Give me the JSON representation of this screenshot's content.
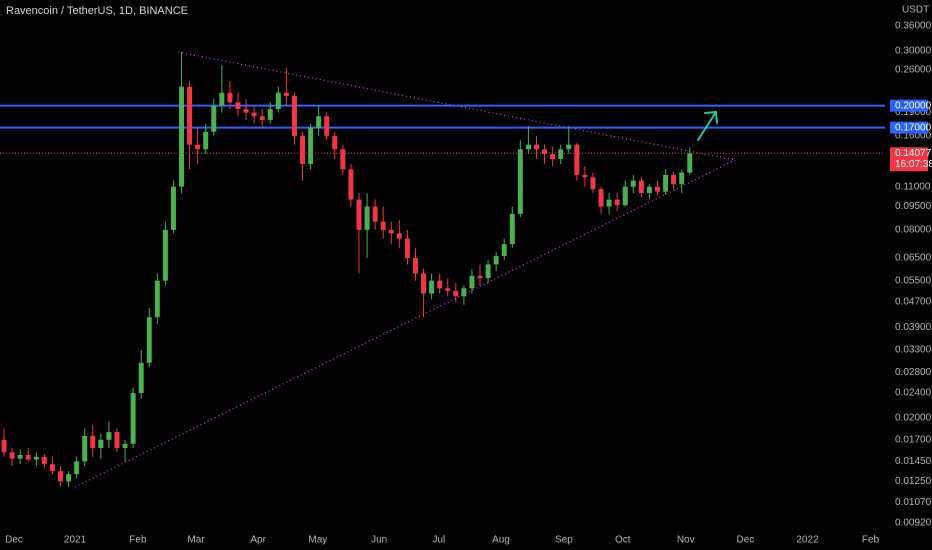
{
  "chart_data": {
    "type": "candlestick",
    "title": "Ravencoin / TetherUS, 1D, BINANCE",
    "y_unit": "USDT",
    "log_scale": true,
    "grid": false,
    "up_color": "#4caf50",
    "down_color": "#f23645",
    "xlim": [
      -0.5,
      109.2
    ],
    "xticks": [
      {
        "value": 1.24,
        "label": "Dec"
      },
      {
        "value": 8.8,
        "label": "2021"
      },
      {
        "value": 16.6,
        "label": "Feb"
      },
      {
        "value": 23.8,
        "label": "Mar"
      },
      {
        "value": 31.5,
        "label": "Apr"
      },
      {
        "value": 38.9,
        "label": "May"
      },
      {
        "value": 46.5,
        "label": "Jun"
      },
      {
        "value": 53.9,
        "label": "Jul"
      },
      {
        "value": 61.6,
        "label": "Aug"
      },
      {
        "value": 69.4,
        "label": "Sep"
      },
      {
        "value": 76.7,
        "label": "Oct"
      },
      {
        "value": 84.5,
        "label": "Nov"
      },
      {
        "value": 91.9,
        "label": "Dec"
      },
      {
        "value": 99.6,
        "label": "2022"
      },
      {
        "value": 107.4,
        "label": "Feb"
      }
    ],
    "ylim": [
      0.00874,
      0.436
    ],
    "yticks": [
      {
        "value": 0.36,
        "label": "0.36000"
      },
      {
        "value": 0.3,
        "label": "0.30000"
      },
      {
        "value": 0.26,
        "label": "0.26000"
      },
      {
        "value": 0.19,
        "label": "0.19000"
      },
      {
        "value": 0.16,
        "label": "0.16000"
      },
      {
        "value": 0.11,
        "label": "0.11000"
      },
      {
        "value": 0.095,
        "label": "0.09500"
      },
      {
        "value": 0.08,
        "label": "0.08000"
      },
      {
        "value": 0.065,
        "label": "0.06500"
      },
      {
        "value": 0.055,
        "label": "0.05500"
      },
      {
        "value": 0.047,
        "label": "0.04700"
      },
      {
        "value": 0.039,
        "label": "0.03900"
      },
      {
        "value": 0.033,
        "label": "0.03300"
      },
      {
        "value": 0.028,
        "label": "0.02800"
      },
      {
        "value": 0.024,
        "label": "0.02400"
      },
      {
        "value": 0.02,
        "label": "0.02000"
      },
      {
        "value": 0.017,
        "label": "0.01700"
      },
      {
        "value": 0.0145,
        "label": "0.01450"
      },
      {
        "value": 0.0125,
        "label": "0.01250"
      },
      {
        "value": 0.0107,
        "label": "0.01070"
      },
      {
        "value": 0.0092,
        "label": "0.00920"
      }
    ],
    "levels": [
      {
        "value": 0.2,
        "label": "0.20000",
        "color": "#2962ff"
      },
      {
        "value": 0.17,
        "label": "0.17000",
        "color": "#2962ff"
      }
    ],
    "last_price": {
      "value": 0.14077,
      "label": "0.14077",
      "countdown": "16:07:38",
      "color": "#f23645"
    },
    "trendlines": [
      {
        "color": "#e040fb",
        "points": [
          [
            8.8,
            0.01199
          ],
          [
            90.6,
            0.134
          ]
        ]
      },
      {
        "color": "#e040fb",
        "points": [
          [
            21.6,
            0.297
          ],
          [
            90.6,
            0.134
          ]
        ]
      }
    ],
    "candles": [
      [
        0.017,
        0.0185,
        0.015,
        0.0155
      ],
      [
        0.0155,
        0.016,
        0.014,
        0.0148
      ],
      [
        0.0148,
        0.0158,
        0.0142,
        0.0152
      ],
      [
        0.0152,
        0.016,
        0.0145,
        0.0147
      ],
      [
        0.0147,
        0.0155,
        0.014,
        0.015
      ],
      [
        0.015,
        0.0153,
        0.0138,
        0.0142
      ],
      [
        0.0142,
        0.015,
        0.0132,
        0.0135
      ],
      [
        0.0135,
        0.014,
        0.012,
        0.0125
      ],
      [
        0.0125,
        0.0135,
        0.012,
        0.0132
      ],
      [
        0.0132,
        0.015,
        0.0128,
        0.0145
      ],
      [
        0.0145,
        0.0185,
        0.014,
        0.0175
      ],
      [
        0.0175,
        0.019,
        0.015,
        0.016
      ],
      [
        0.016,
        0.0178,
        0.0148,
        0.017
      ],
      [
        0.017,
        0.0195,
        0.016,
        0.018
      ],
      [
        0.018,
        0.0185,
        0.0155,
        0.016
      ],
      [
        0.016,
        0.017,
        0.0145,
        0.0165
      ],
      [
        0.0165,
        0.025,
        0.016,
        0.024
      ],
      [
        0.024,
        0.033,
        0.023,
        0.03
      ],
      [
        0.03,
        0.045,
        0.029,
        0.042
      ],
      [
        0.042,
        0.058,
        0.04,
        0.055
      ],
      [
        0.055,
        0.085,
        0.053,
        0.08
      ],
      [
        0.08,
        0.115,
        0.078,
        0.11
      ],
      [
        0.11,
        0.297,
        0.105,
        0.23
      ],
      [
        0.23,
        0.24,
        0.125,
        0.15
      ],
      [
        0.15,
        0.17,
        0.13,
        0.145
      ],
      [
        0.145,
        0.175,
        0.14,
        0.165
      ],
      [
        0.165,
        0.21,
        0.16,
        0.2
      ],
      [
        0.2,
        0.27,
        0.19,
        0.22
      ],
      [
        0.22,
        0.24,
        0.195,
        0.205
      ],
      [
        0.205,
        0.22,
        0.185,
        0.195
      ],
      [
        0.195,
        0.21,
        0.18,
        0.19
      ],
      [
        0.19,
        0.2,
        0.175,
        0.185
      ],
      [
        0.185,
        0.195,
        0.17,
        0.18
      ],
      [
        0.18,
        0.205,
        0.175,
        0.195
      ],
      [
        0.195,
        0.23,
        0.19,
        0.22
      ],
      [
        0.22,
        0.265,
        0.2,
        0.215
      ],
      [
        0.215,
        0.22,
        0.15,
        0.16
      ],
      [
        0.16,
        0.165,
        0.115,
        0.13
      ],
      [
        0.13,
        0.175,
        0.125,
        0.17
      ],
      [
        0.17,
        0.2,
        0.16,
        0.185
      ],
      [
        0.185,
        0.19,
        0.155,
        0.16
      ],
      [
        0.16,
        0.165,
        0.135,
        0.145
      ],
      [
        0.145,
        0.15,
        0.12,
        0.125
      ],
      [
        0.125,
        0.13,
        0.095,
        0.1
      ],
      [
        0.1,
        0.105,
        0.058,
        0.08
      ],
      [
        0.08,
        0.105,
        0.065,
        0.095
      ],
      [
        0.095,
        0.1,
        0.08,
        0.085
      ],
      [
        0.085,
        0.095,
        0.075,
        0.08
      ],
      [
        0.08,
        0.085,
        0.072,
        0.078
      ],
      [
        0.078,
        0.086,
        0.07,
        0.075
      ],
      [
        0.075,
        0.08,
        0.062,
        0.065
      ],
      [
        0.065,
        0.07,
        0.055,
        0.058
      ],
      [
        0.058,
        0.06,
        0.042,
        0.05
      ],
      [
        0.05,
        0.058,
        0.048,
        0.055
      ],
      [
        0.055,
        0.058,
        0.05,
        0.052
      ],
      [
        0.052,
        0.056,
        0.049,
        0.051
      ],
      [
        0.051,
        0.054,
        0.047,
        0.049
      ],
      [
        0.049,
        0.053,
        0.046,
        0.052
      ],
      [
        0.052,
        0.06,
        0.05,
        0.057
      ],
      [
        0.057,
        0.062,
        0.053,
        0.056
      ],
      [
        0.056,
        0.064,
        0.054,
        0.062
      ],
      [
        0.062,
        0.068,
        0.059,
        0.066
      ],
      [
        0.066,
        0.075,
        0.064,
        0.072
      ],
      [
        0.072,
        0.095,
        0.07,
        0.09
      ],
      [
        0.09,
        0.155,
        0.088,
        0.145
      ],
      [
        0.145,
        0.172,
        0.14,
        0.15
      ],
      [
        0.15,
        0.16,
        0.135,
        0.145
      ],
      [
        0.145,
        0.15,
        0.13,
        0.14
      ],
      [
        0.14,
        0.148,
        0.128,
        0.135
      ],
      [
        0.135,
        0.15,
        0.13,
        0.145
      ],
      [
        0.145,
        0.172,
        0.14,
        0.15
      ],
      [
        0.15,
        0.152,
        0.115,
        0.12
      ],
      [
        0.12,
        0.128,
        0.11,
        0.118
      ],
      [
        0.118,
        0.122,
        0.105,
        0.108
      ],
      [
        0.108,
        0.11,
        0.09,
        0.095
      ],
      [
        0.095,
        0.105,
        0.09,
        0.1
      ],
      [
        0.1,
        0.105,
        0.092,
        0.096
      ],
      [
        0.096,
        0.115,
        0.095,
        0.11
      ],
      [
        0.11,
        0.12,
        0.105,
        0.115
      ],
      [
        0.115,
        0.118,
        0.102,
        0.105
      ],
      [
        0.105,
        0.112,
        0.1,
        0.11
      ],
      [
        0.11,
        0.115,
        0.103,
        0.106
      ],
      [
        0.106,
        0.125,
        0.104,
        0.12
      ],
      [
        0.12,
        0.123,
        0.108,
        0.112
      ],
      [
        0.112,
        0.125,
        0.105,
        0.122
      ],
      [
        0.122,
        0.147,
        0.12,
        0.14077
      ]
    ]
  }
}
